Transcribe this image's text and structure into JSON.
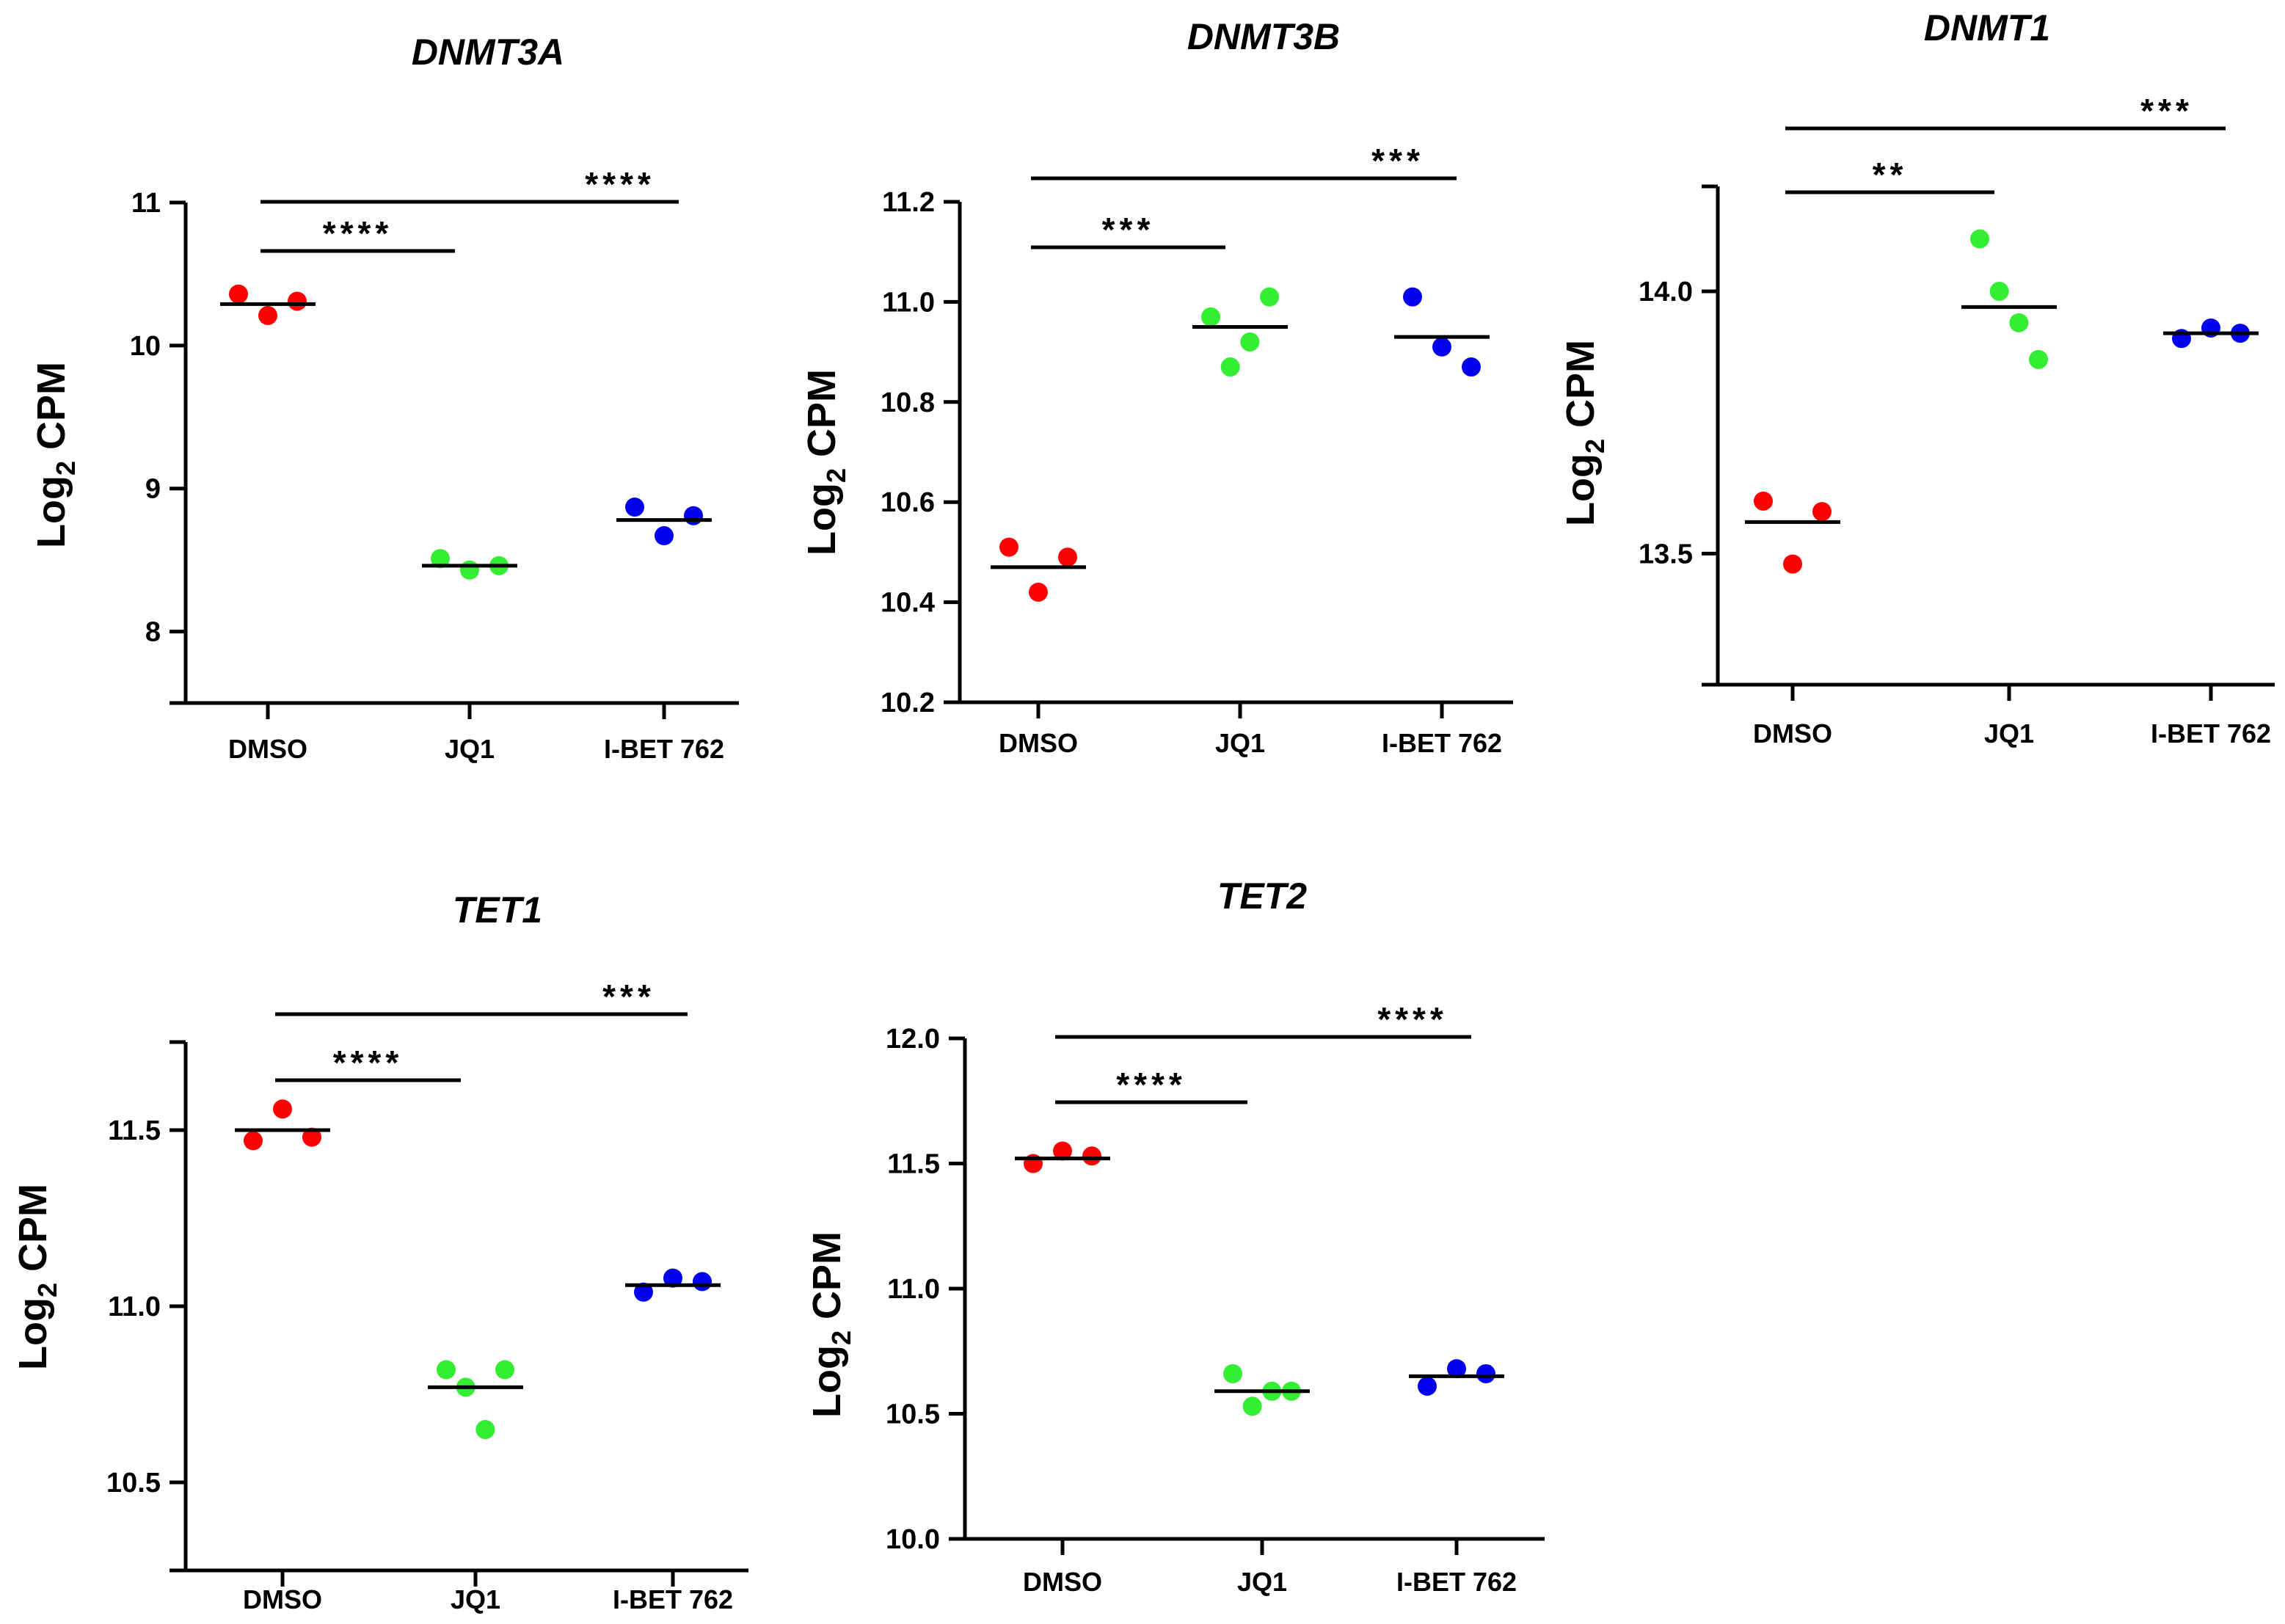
{
  "chart_data": [
    {
      "type": "scatter",
      "title": "DNMT3A",
      "ylabel": {
        "base": "Log",
        "sub": "2",
        "rest": " CPM"
      },
      "categories": [
        "DMSO",
        "JQ1",
        "I-BET 762"
      ],
      "ylim": [
        7.5,
        11
      ],
      "yticks": [
        8,
        9,
        10,
        11
      ],
      "tick_decimals": 0,
      "series": [
        {
          "category": "DMSO",
          "color": "#ff0000",
          "points": [
            10.36,
            10.21,
            10.31
          ],
          "mean": 10.29
        },
        {
          "category": "JQ1",
          "color": "#33ee33",
          "points": [
            8.51,
            8.43,
            8.46
          ],
          "mean": 8.46
        },
        {
          "category": "I-BET 762",
          "color": "#0000ee",
          "points": [
            8.87,
            8.67,
            8.81
          ],
          "mean": 8.78
        }
      ],
      "comparisons": [
        {
          "from": "DMSO",
          "to": "JQ1",
          "label": "****"
        },
        {
          "from": "DMSO",
          "to": "I-BET 762",
          "label": "****"
        }
      ]
    },
    {
      "type": "scatter",
      "title": "DNMT3B",
      "ylabel": {
        "base": "Log",
        "sub": "2",
        "rest": " CPM"
      },
      "categories": [
        "DMSO",
        "JQ1",
        "I-BET 762"
      ],
      "ylim": [
        10.2,
        11.2
      ],
      "yticks": [
        10.2,
        10.4,
        10.6,
        10.8,
        11.0,
        11.2
      ],
      "tick_decimals": 1,
      "series": [
        {
          "category": "DMSO",
          "color": "#ff0000",
          "points": [
            10.51,
            10.42,
            10.49
          ],
          "mean": 10.47
        },
        {
          "category": "JQ1",
          "color": "#33ee33",
          "points": [
            10.97,
            10.87,
            10.92,
            11.01
          ],
          "mean": 10.95
        },
        {
          "category": "I-BET 762",
          "color": "#0000ee",
          "points": [
            11.01,
            10.91,
            10.87
          ],
          "mean": 10.93
        }
      ],
      "comparisons": [
        {
          "from": "DMSO",
          "to": "JQ1",
          "label": "***"
        },
        {
          "from": "DMSO",
          "to": "I-BET 762",
          "label": "***"
        }
      ]
    },
    {
      "type": "scatter",
      "title": "DNMT1",
      "ylabel": {
        "base": "Log",
        "sub": "2",
        "rest": " CPM"
      },
      "categories": [
        "DMSO",
        "JQ1",
        "I-BET 762"
      ],
      "ylim": [
        13.25,
        14.2
      ],
      "yticks": [
        13.5,
        14.0
      ],
      "tick_decimals": 1,
      "series": [
        {
          "category": "DMSO",
          "color": "#ff0000",
          "points": [
            13.6,
            13.48,
            13.58
          ],
          "mean": 13.56
        },
        {
          "category": "JQ1",
          "color": "#33ee33",
          "points": [
            14.1,
            14.0,
            13.94,
            13.87
          ],
          "mean": 13.97
        },
        {
          "category": "I-BET 762",
          "color": "#0000ee",
          "points": [
            13.91,
            13.93,
            13.92
          ],
          "mean": 13.92
        }
      ],
      "comparisons": [
        {
          "from": "DMSO",
          "to": "JQ1",
          "label": "**"
        },
        {
          "from": "DMSO",
          "to": "I-BET 762",
          "label": "***"
        }
      ]
    },
    {
      "type": "scatter",
      "title": "TET1",
      "ylabel": {
        "base": "Log",
        "sub": "2",
        "rest": " CPM"
      },
      "categories": [
        "DMSO",
        "JQ1",
        "I-BET 762"
      ],
      "ylim": [
        10.25,
        11.75
      ],
      "yticks": [
        10.5,
        11.0,
        11.5
      ],
      "tick_decimals": 1,
      "series": [
        {
          "category": "DMSO",
          "color": "#ff0000",
          "points": [
            11.47,
            11.56,
            11.48
          ],
          "mean": 11.5
        },
        {
          "category": "JQ1",
          "color": "#33ee33",
          "points": [
            10.82,
            10.77,
            10.65,
            10.82
          ],
          "mean": 10.77
        },
        {
          "category": "I-BET 762",
          "color": "#0000ee",
          "points": [
            11.04,
            11.08,
            11.07
          ],
          "mean": 11.06
        }
      ],
      "comparisons": [
        {
          "from": "DMSO",
          "to": "JQ1",
          "label": "****"
        },
        {
          "from": "DMSO",
          "to": "I-BET 762",
          "label": "***"
        }
      ]
    },
    {
      "type": "scatter",
      "title": "TET2",
      "ylabel": {
        "base": "Log",
        "sub": "2",
        "rest": " CPM"
      },
      "categories": [
        "DMSO",
        "JQ1",
        "I-BET 762"
      ],
      "ylim": [
        10.0,
        12.0
      ],
      "yticks": [
        10.0,
        10.5,
        11.0,
        11.5,
        12.0
      ],
      "tick_decimals": 1,
      "series": [
        {
          "category": "DMSO",
          "color": "#ff0000",
          "points": [
            11.5,
            11.55,
            11.53
          ],
          "mean": 11.52
        },
        {
          "category": "JQ1",
          "color": "#33ee33",
          "points": [
            10.66,
            10.53,
            10.59,
            10.59
          ],
          "mean": 10.59
        },
        {
          "category": "I-BET 762",
          "color": "#0000ee",
          "points": [
            10.61,
            10.68,
            10.66
          ],
          "mean": 10.65
        }
      ],
      "comparisons": [
        {
          "from": "DMSO",
          "to": "JQ1",
          "label": "****"
        },
        {
          "from": "DMSO",
          "to": "I-BET 762",
          "label": "****"
        }
      ]
    }
  ]
}
